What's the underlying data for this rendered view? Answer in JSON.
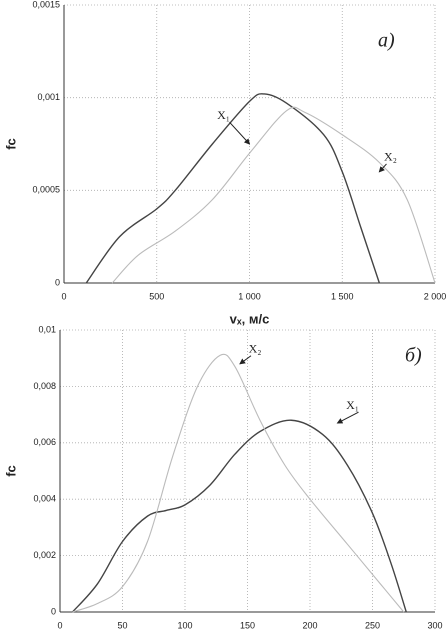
{
  "chart_data": [
    {
      "type": "line",
      "annotation": "a)",
      "x_label": "vₓ, м/с",
      "y_label": "fc",
      "xlim": [
        0,
        2000
      ],
      "xticks": [
        0,
        500,
        {
          "value": 1000,
          "label": "1 000"
        },
        {
          "value": 1500,
          "label": "1 500"
        },
        {
          "value": 2000,
          "label": "2 000"
        }
      ],
      "ylim": [
        0,
        0.0015
      ],
      "yticks": [
        0,
        {
          "value": 0.0005,
          "label": "0,0005"
        },
        {
          "value": 0.001,
          "label": "0,001"
        },
        {
          "value": 0.0015,
          "label": "0,0015"
        }
      ],
      "grid": true,
      "series": [
        {
          "name": "X₁",
          "color": "#444444",
          "x": [
            120,
            300,
            500,
            600,
            800,
            1000,
            1080,
            1200,
            1400,
            1500,
            1600,
            1700
          ],
          "values": [
            0,
            0.00025,
            0.0004,
            0.0005,
            0.00075,
            0.00098,
            0.00102,
            0.00097,
            0.0008,
            0.0006,
            0.0003,
            0
          ]
        },
        {
          "name": "X₂",
          "color": "#bbbbbb",
          "x": [
            260,
            400,
            600,
            800,
            1000,
            1200,
            1300,
            1500,
            1700,
            1850,
            2000
          ],
          "values": [
            0,
            0.00015,
            0.00028,
            0.00045,
            0.0007,
            0.00093,
            0.00092,
            0.0008,
            0.00065,
            0.00045,
            0
          ]
        }
      ]
    },
    {
      "type": "line",
      "annotation": "б)",
      "y_label": "fc",
      "xlim": [
        0,
        300
      ],
      "xticks": [
        0,
        50,
        100,
        150,
        200,
        250,
        300
      ],
      "ylim": [
        0,
        0.01
      ],
      "yticks": [
        0,
        {
          "value": 0.002,
          "label": "0,002"
        },
        {
          "value": 0.004,
          "label": "0,004"
        },
        {
          "value": 0.006,
          "label": "0,006"
        },
        {
          "value": 0.008,
          "label": "0,008"
        },
        {
          "value": 0.01,
          "label": "0,01"
        }
      ],
      "grid": true,
      "series": [
        {
          "name": "X₁",
          "color": "#444444",
          "x": [
            10,
            30,
            50,
            70,
            85,
            100,
            120,
            140,
            160,
            185,
            210,
            230,
            250,
            265,
            277
          ],
          "values": [
            0,
            0.001,
            0.0025,
            0.0034,
            0.0036,
            0.0038,
            0.0045,
            0.0056,
            0.0064,
            0.0068,
            0.0063,
            0.0052,
            0.0035,
            0.0017,
            0
          ]
        },
        {
          "name": "X₂",
          "color": "#bbbbbb",
          "x": [
            10,
            30,
            50,
            70,
            90,
            110,
            128,
            140,
            160,
            180,
            200,
            230,
            260,
            275
          ],
          "values": [
            0,
            0.0003,
            0.0009,
            0.0025,
            0.0055,
            0.008,
            0.0091,
            0.0087,
            0.0068,
            0.0052,
            0.004,
            0.0024,
            0.0008,
            0
          ]
        }
      ]
    }
  ]
}
